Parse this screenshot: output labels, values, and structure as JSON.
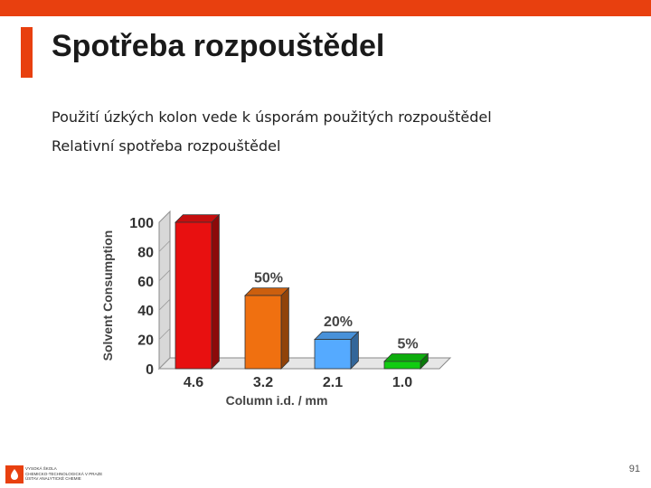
{
  "slide": {
    "title": "Spotřeba rozpouštědel",
    "lines": [
      "Použití úzkých kolon vede k úsporám použitých rozpouštědel",
      "Relativní spotřeba rozpouštědel"
    ],
    "page_number": "91",
    "footer_lines": [
      "Vysoká škola",
      "chemicko-technologická v Praze",
      "Ústav analytické chemie"
    ],
    "accent_color": "#e8400f"
  },
  "chart_data": {
    "type": "bar",
    "title": "",
    "xlabel": "Column i.d. / mm",
    "ylabel": "Solvent Consumption",
    "categories": [
      "4.6",
      "3.2",
      "2.1",
      "1.0"
    ],
    "values": [
      100,
      50,
      20,
      5
    ],
    "data_labels": [
      "",
      "50%",
      "20%",
      "5%"
    ],
    "colors": [
      "#e81010",
      "#f07010",
      "#55aaff",
      "#11cc11"
    ],
    "yticks": [
      "0",
      "20",
      "40",
      "60",
      "80",
      "100"
    ],
    "ylim": [
      0,
      100
    ]
  }
}
